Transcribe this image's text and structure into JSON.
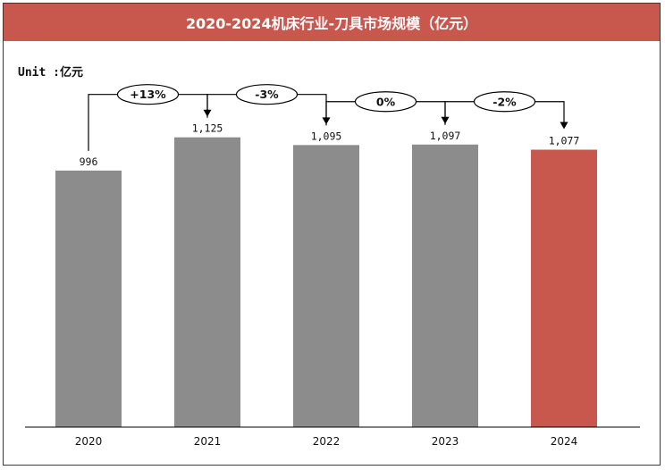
{
  "header": {
    "title": "2020-2024机床行业-刀具市场规模（亿元）",
    "bg_color": "#c8574e"
  },
  "unit_label": "Unit :亿元",
  "colors": {
    "bar_default": "#8c8c8c",
    "bar_highlight": "#c8574e",
    "axis": "#000000"
  },
  "chart_data": {
    "type": "bar",
    "categories": [
      "2020",
      "2021",
      "2022",
      "2023",
      "2024"
    ],
    "values": [
      996,
      1125,
      1095,
      1097,
      1077
    ],
    "value_labels": [
      "996",
      "1,125",
      "1,095",
      "1,097",
      "1,077"
    ],
    "highlight_index": 4,
    "growth": [
      {
        "from": 0,
        "to": 1,
        "label": "+13%"
      },
      {
        "from": 1,
        "to": 2,
        "label": "-3%"
      },
      {
        "from": 2,
        "to": 3,
        "label": "0%"
      },
      {
        "from": 3,
        "to": 4,
        "label": "-2%"
      }
    ],
    "title": "2020-2024机床行业-刀具市场规模（亿元）",
    "xlabel": "",
    "ylabel": "",
    "ylim": [
      0,
      1450
    ],
    "grid": false
  }
}
